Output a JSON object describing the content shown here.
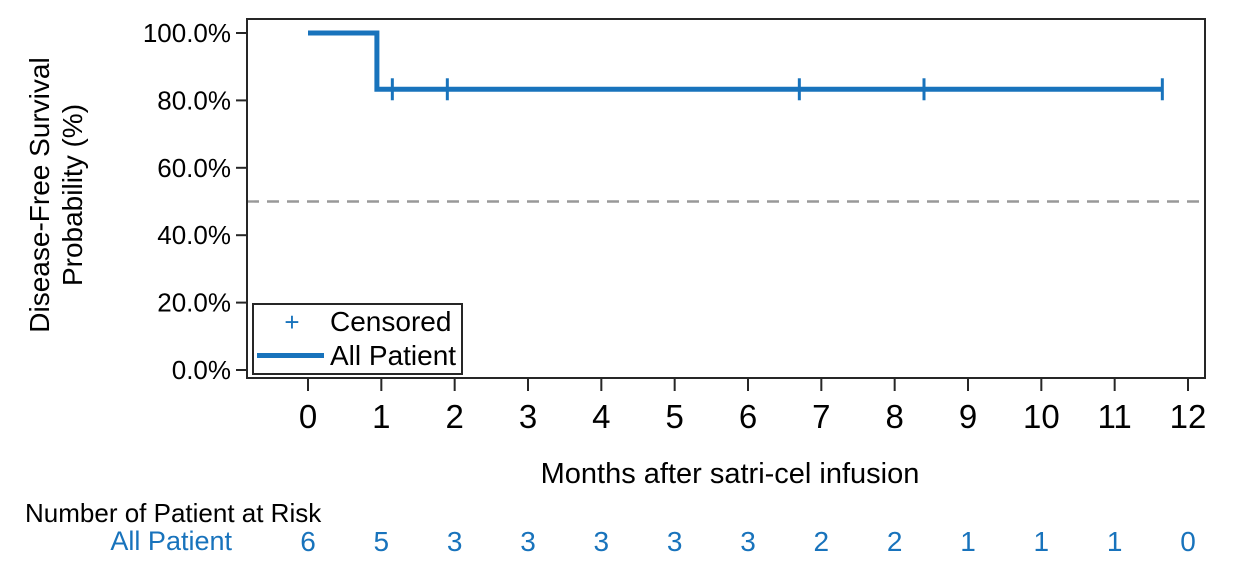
{
  "chart_data": {
    "type": "line",
    "subtype": "kaplan-meier-step",
    "title": "",
    "x_axis": {
      "title": "Months after satri-cel infusion",
      "ticks": [
        0,
        1,
        2,
        3,
        4,
        5,
        6,
        7,
        8,
        9,
        10,
        11,
        12
      ],
      "xlim": [
        0,
        12
      ]
    },
    "y_axis": {
      "title_line1": "Disease-Free Survival",
      "title_line2": "Probability (%)",
      "tick_values": [
        0,
        20,
        40,
        60,
        80,
        100
      ],
      "tick_labels": [
        "0.0%",
        "20.0%",
        "40.0%",
        "60.0%",
        "80.0%",
        "100.0%"
      ],
      "ylim": [
        0,
        100
      ]
    },
    "reference_line": {
      "y": 50,
      "style": "dashed",
      "color": "#999999"
    },
    "series": [
      {
        "name": "All Patient",
        "color": "#1873bc",
        "step_points": [
          [
            0,
            100
          ],
          [
            0.94,
            100
          ],
          [
            0.94,
            83.3
          ],
          [
            11.65,
            83.3
          ]
        ],
        "censor_times": [
          1.15,
          1.9,
          6.7,
          8.4,
          11.65
        ],
        "censor_y": 83.3
      }
    ],
    "legend": {
      "position": "bottom-left-inside",
      "items": [
        {
          "marker": "plus",
          "marker_glyph": "+",
          "label": "Censored"
        },
        {
          "marker": "line",
          "label": "All Patient"
        }
      ]
    },
    "risk_table": {
      "title": "Number of Patient at Risk",
      "rows": [
        {
          "label": "All Patient",
          "values": [
            6,
            5,
            3,
            3,
            3,
            3,
            3,
            2,
            2,
            1,
            1,
            1,
            0
          ]
        }
      ]
    }
  },
  "colors": {
    "series_blue": "#1873bc",
    "reference_gray": "#999999",
    "axis_line": "#262626",
    "text": "#000000"
  }
}
